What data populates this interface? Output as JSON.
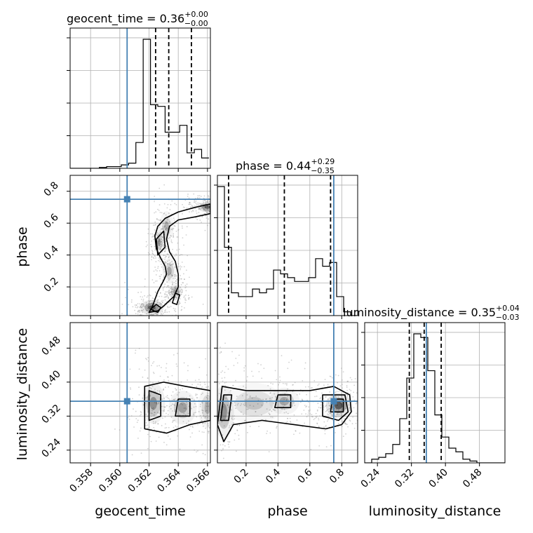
{
  "chart_data": {
    "type": "corner",
    "parameters": [
      "geocent_time",
      "phase",
      "luminosity_distance"
    ],
    "axis_labels": [
      "geocent_time",
      "phase",
      "luminosity_distance"
    ],
    "titles": [
      {
        "param": "geocent_time",
        "text": "geocent_time = 0.36",
        "plus": "+0.00",
        "minus": "−0.00"
      },
      {
        "param": "phase",
        "text": "phase = 0.44",
        "plus": "+0.29",
        "minus": "−0.35"
      },
      {
        "param": "luminosity_distance",
        "text": "luminosity_distance = 0.35",
        "plus": "+0.04",
        "minus": "−0.03"
      }
    ],
    "ranges": {
      "geocent_time": [
        0.3566,
        0.3662
      ],
      "phase": [
        0.02,
        0.9
      ],
      "luminosity_distance": [
        0.21,
        0.54
      ]
    },
    "ticks": {
      "geocent_time": {
        "values": [
          0.358,
          0.36,
          0.362,
          0.364,
          0.366
        ],
        "labels": [
          "0.358",
          "0.360",
          "0.362",
          "0.364",
          "0.366"
        ]
      },
      "phase": {
        "values": [
          0.2,
          0.4,
          0.6,
          0.8
        ],
        "labels": [
          "0.2",
          "0.4",
          "0.6",
          "0.8"
        ]
      },
      "luminosity_distance": {
        "values": [
          0.24,
          0.32,
          0.4,
          0.48
        ],
        "labels": [
          "0.24",
          "0.32",
          "0.40",
          "0.48"
        ]
      }
    },
    "truths": {
      "geocent_time": 0.3605,
      "phase": 0.75,
      "luminosity_distance": 0.355
    },
    "quantiles": {
      "geocent_time": [
        0.36245,
        0.36335,
        0.3649
      ],
      "phase": [
        0.09,
        0.44,
        0.73
      ],
      "luminosity_distance": [
        0.315,
        0.35,
        0.39
      ]
    },
    "histograms": {
      "geocent_time": {
        "edges": [
          0.3566,
          0.3571,
          0.3576,
          0.3581,
          0.3586,
          0.3591,
          0.3596,
          0.3601,
          0.3606,
          0.3611,
          0.3616,
          0.3621,
          0.3626,
          0.3631,
          0.3636,
          0.3641,
          0.3646,
          0.3651,
          0.3656,
          0.3661
        ],
        "counts": [
          0,
          0,
          0,
          0,
          0.5,
          1,
          1,
          2,
          3,
          15,
          75,
          37,
          36,
          21,
          21,
          25,
          9,
          11,
          6
        ]
      },
      "phase": {
        "edges": [
          0.02,
          0.064,
          0.108,
          0.152,
          0.196,
          0.24,
          0.284,
          0.328,
          0.372,
          0.416,
          0.46,
          0.504,
          0.548,
          0.592,
          0.636,
          0.68,
          0.724,
          0.768,
          0.812,
          0.856,
          0.9
        ],
        "counts": [
          34,
          18,
          6,
          5,
          5,
          7,
          6,
          7,
          12,
          11,
          10,
          9,
          9,
          10,
          15,
          13,
          14,
          5,
          1,
          0
        ]
      },
      "luminosity_distance": {
        "edges": [
          0.21,
          0.2265,
          0.243,
          0.2595,
          0.276,
          0.2925,
          0.309,
          0.3255,
          0.342,
          0.3585,
          0.375,
          0.3915,
          0.408,
          0.4245,
          0.441,
          0.4575,
          0.474,
          0.4905,
          0.507,
          0.5235,
          0.54
        ],
        "counts": [
          0,
          2,
          3,
          5,
          10,
          24,
          46,
          70,
          68,
          50,
          26,
          14,
          8,
          6,
          2,
          1,
          0,
          0,
          0,
          0
        ]
      }
    },
    "panels_2d": [
      {
        "x": "geocent_time",
        "y": "phase",
        "contours": [
          [
            [
              0.362,
              0.04
            ],
            [
              0.3622,
              0.07
            ],
            [
              0.3624,
              0.12
            ],
            [
              0.3626,
              0.17
            ],
            [
              0.363,
              0.24
            ],
            [
              0.3632,
              0.28
            ],
            [
              0.3631,
              0.33
            ],
            [
              0.3628,
              0.38
            ],
            [
              0.3625,
              0.44
            ],
            [
              0.3624,
              0.52
            ],
            [
              0.3626,
              0.58
            ],
            [
              0.3631,
              0.63
            ],
            [
              0.364,
              0.67
            ],
            [
              0.3652,
              0.7
            ],
            [
              0.3662,
              0.72
            ],
            [
              0.3662,
              0.66
            ],
            [
              0.3652,
              0.64
            ],
            [
              0.364,
              0.62
            ],
            [
              0.3634,
              0.58
            ],
            [
              0.3632,
              0.5
            ],
            [
              0.3634,
              0.42
            ],
            [
              0.3638,
              0.36
            ],
            [
              0.364,
              0.28
            ],
            [
              0.364,
              0.2
            ],
            [
              0.3637,
              0.14
            ],
            [
              0.363,
              0.08
            ],
            [
              0.3626,
              0.05
            ]
          ],
          [
            [
              0.3621,
              0.06
            ],
            [
              0.3625,
              0.09
            ],
            [
              0.3628,
              0.07
            ],
            [
              0.3626,
              0.04
            ]
          ],
          [
            [
              0.3626,
              0.4
            ],
            [
              0.3625,
              0.5
            ],
            [
              0.363,
              0.55
            ],
            [
              0.3631,
              0.45
            ]
          ],
          [
            [
              0.3636,
              0.1
            ],
            [
              0.3638,
              0.16
            ],
            [
              0.3641,
              0.15
            ],
            [
              0.3639,
              0.09
            ]
          ]
        ],
        "blobs": [
          {
            "x": 0.3622,
            "y": 0.07,
            "rx": 0.0005,
            "ry": 0.03,
            "density": 0.95
          },
          {
            "x": 0.366,
            "y": 0.7,
            "rx": 0.0004,
            "ry": 0.02,
            "density": 0.9
          },
          {
            "x": 0.3627,
            "y": 0.48,
            "rx": 0.0002,
            "ry": 0.05,
            "density": 0.55
          },
          {
            "x": 0.3632,
            "y": 0.58,
            "rx": 0.0003,
            "ry": 0.06,
            "density": 0.4
          },
          {
            "x": 0.3634,
            "y": 0.3,
            "rx": 0.0003,
            "ry": 0.05,
            "density": 0.45
          },
          {
            "x": 0.3638,
            "y": 0.17,
            "rx": 0.0003,
            "ry": 0.03,
            "density": 0.5
          }
        ]
      },
      {
        "x": "geocent_time",
        "y": "luminosity_distance",
        "contours": [
          [
            [
              0.3617,
              0.29
            ],
            [
              0.3617,
              0.39
            ],
            [
              0.363,
              0.4
            ],
            [
              0.3645,
              0.39
            ],
            [
              0.3662,
              0.38
            ],
            [
              0.3662,
              0.31
            ],
            [
              0.3648,
              0.3
            ],
            [
              0.3632,
              0.28
            ]
          ],
          [
            [
              0.362,
              0.31
            ],
            [
              0.362,
              0.38
            ],
            [
              0.3628,
              0.37
            ],
            [
              0.3628,
              0.32
            ]
          ],
          [
            [
              0.3638,
              0.32
            ],
            [
              0.364,
              0.36
            ],
            [
              0.3648,
              0.36
            ],
            [
              0.3648,
              0.32
            ]
          ]
        ],
        "blobs": [
          {
            "x": 0.3623,
            "y": 0.35,
            "rx": 0.0005,
            "ry": 0.03,
            "density": 0.6
          },
          {
            "x": 0.3643,
            "y": 0.34,
            "rx": 0.0006,
            "ry": 0.025,
            "density": 0.5
          },
          {
            "x": 0.366,
            "y": 0.34,
            "rx": 0.0004,
            "ry": 0.03,
            "density": 0.4
          }
        ]
      },
      {
        "x": "phase",
        "y": "luminosity_distance",
        "contours": [
          [
            [
              0.02,
              0.3
            ],
            [
              0.05,
              0.39
            ],
            [
              0.2,
              0.38
            ],
            [
              0.4,
              0.38
            ],
            [
              0.6,
              0.38
            ],
            [
              0.75,
              0.39
            ],
            [
              0.85,
              0.37
            ],
            [
              0.86,
              0.33
            ],
            [
              0.8,
              0.3
            ],
            [
              0.7,
              0.29
            ],
            [
              0.5,
              0.3
            ],
            [
              0.3,
              0.31
            ],
            [
              0.12,
              0.3
            ],
            [
              0.06,
              0.26
            ]
          ],
          [
            [
              0.04,
              0.31
            ],
            [
              0.06,
              0.37
            ],
            [
              0.11,
              0.37
            ],
            [
              0.09,
              0.31
            ]
          ],
          [
            [
              0.38,
              0.34
            ],
            [
              0.4,
              0.37
            ],
            [
              0.48,
              0.37
            ],
            [
              0.48,
              0.34
            ]
          ],
          [
            [
              0.68,
              0.32
            ],
            [
              0.68,
              0.37
            ],
            [
              0.82,
              0.37
            ],
            [
              0.84,
              0.33
            ],
            [
              0.78,
              0.31
            ]
          ],
          [
            [
              0.73,
              0.33
            ],
            [
              0.74,
              0.36
            ],
            [
              0.81,
              0.36
            ],
            [
              0.81,
              0.33
            ]
          ]
        ],
        "blobs": [
          {
            "x": 0.78,
            "y": 0.345,
            "rx": 0.05,
            "ry": 0.018,
            "density": 1.0
          },
          {
            "x": 0.06,
            "y": 0.33,
            "rx": 0.04,
            "ry": 0.04,
            "density": 0.6
          },
          {
            "x": 0.44,
            "y": 0.355,
            "rx": 0.06,
            "ry": 0.02,
            "density": 0.45
          },
          {
            "x": 0.25,
            "y": 0.35,
            "rx": 0.12,
            "ry": 0.03,
            "density": 0.3
          }
        ]
      }
    ],
    "colors": {
      "truth": "#4682b4",
      "hist": "#000000",
      "grid": "#b0b0b0",
      "points": "#9a9a9a"
    }
  }
}
